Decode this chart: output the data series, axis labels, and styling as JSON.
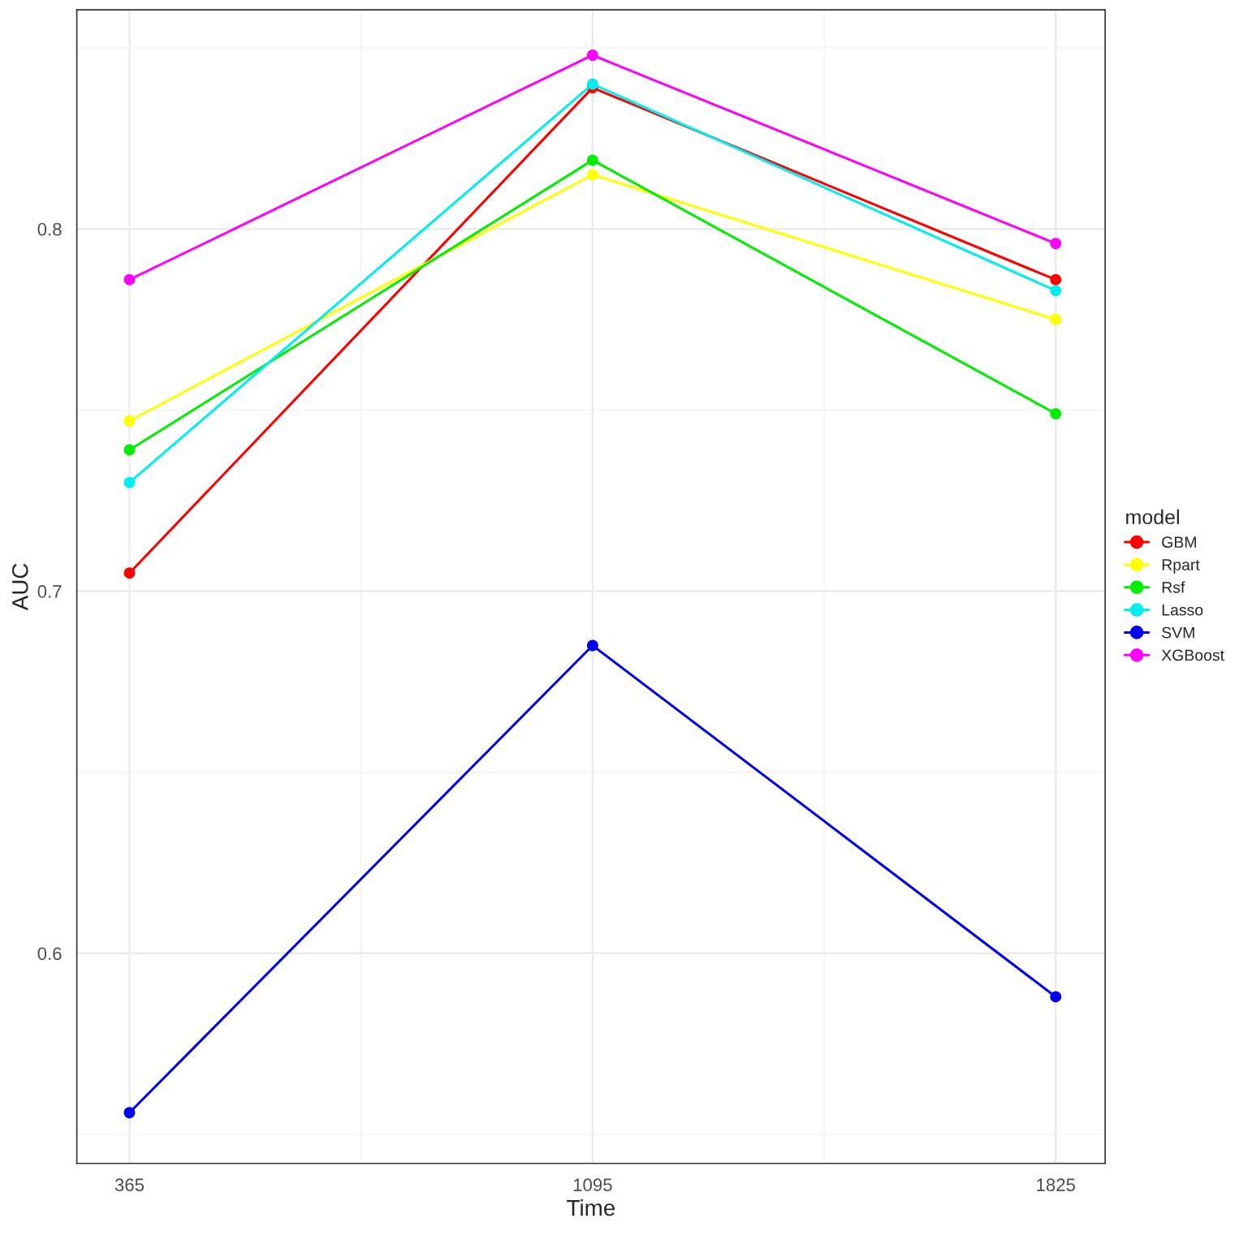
{
  "chart_data": {
    "type": "line",
    "xlabel": "Time",
    "ylabel": "AUC",
    "legend_title": "model",
    "x": [
      365,
      1095,
      1825
    ],
    "series": [
      {
        "name": "GBM",
        "color": "#ff0000",
        "values": [
          0.705,
          0.839,
          0.786
        ]
      },
      {
        "name": "Rpart",
        "color": "#ffff00",
        "values": [
          0.747,
          0.815,
          0.775
        ]
      },
      {
        "name": "Rsf",
        "color": "#00ee00",
        "values": [
          0.739,
          0.819,
          0.749
        ]
      },
      {
        "name": "Lasso",
        "color": "#00eeee",
        "values": [
          0.73,
          0.84,
          0.783
        ]
      },
      {
        "name": "SVM",
        "color": "#0000ee",
        "values": [
          0.556,
          0.685,
          0.588
        ]
      },
      {
        "name": "XGBoost",
        "color": "#ff00ff",
        "values": [
          0.786,
          0.848,
          0.796
        ]
      }
    ],
    "xlim": [
      282,
      1903
    ],
    "ylim": [
      0.542,
      0.8605
    ],
    "xticks": [
      365,
      1095,
      1825
    ],
    "yticks": [
      0.6,
      0.7,
      0.8
    ],
    "grid": true,
    "legend": "right",
    "marker": "circle",
    "line_style": "solid"
  }
}
